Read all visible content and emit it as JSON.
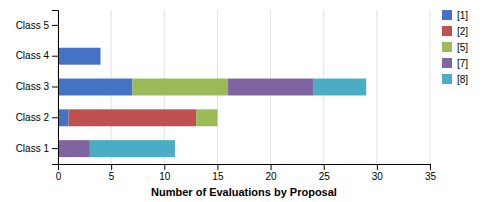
{
  "chart_data": {
    "type": "bar",
    "orientation": "horizontal",
    "stacked": true,
    "categories": [
      "Class 1",
      "Class 2",
      "Class 3",
      "Class 4",
      "Class 5"
    ],
    "series": [
      {
        "name": "[1]",
        "color": "#4472C4",
        "values": [
          0,
          1,
          7,
          4,
          0
        ]
      },
      {
        "name": "[2]",
        "color": "#C0504D",
        "values": [
          0,
          12,
          0,
          0,
          0
        ]
      },
      {
        "name": "[5]",
        "color": "#9BBB59",
        "values": [
          0,
          2,
          9,
          0,
          0
        ]
      },
      {
        "name": "[7]",
        "color": "#8064A2",
        "values": [
          3,
          0,
          8,
          0,
          0
        ]
      },
      {
        "name": "[8]",
        "color": "#4BACC6",
        "values": [
          8,
          0,
          5,
          0,
          0
        ]
      }
    ],
    "xlabel": "Number of Evaluations by Proposal",
    "xlim": [
      0,
      35
    ],
    "xticks": [
      0,
      5,
      10,
      15,
      20,
      25,
      30,
      35
    ],
    "grid": true,
    "legend": "right"
  }
}
